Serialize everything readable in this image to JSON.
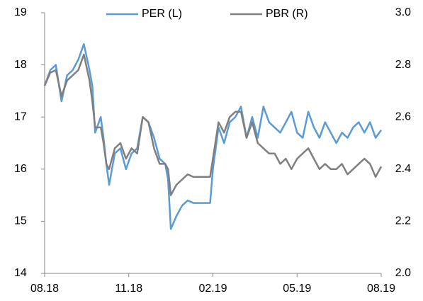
{
  "chart_data": {
    "type": "line",
    "x": [
      0,
      0.2,
      0.4,
      0.6,
      0.8,
      1.0,
      1.2,
      1.4,
      1.6,
      1.7,
      1.8,
      2.0,
      2.1,
      2.2,
      2.3,
      2.5,
      2.7,
      2.9,
      3.1,
      3.3,
      3.5,
      3.7,
      3.9,
      4.1,
      4.3,
      4.4,
      4.5,
      4.7,
      4.9,
      5.1,
      5.3,
      5.5,
      5.7,
      5.9,
      6.0,
      6.2,
      6.4,
      6.6,
      6.8,
      7.0,
      7.2,
      7.4,
      7.6,
      7.8,
      8.0,
      8.2,
      8.4,
      8.6,
      8.8,
      9.0,
      9.2,
      9.4,
      9.6,
      9.8,
      10.0,
      10.2,
      10.4,
      10.6,
      10.8,
      11.0,
      11.2,
      11.4,
      11.6,
      11.8,
      12.0
    ],
    "xlim": [
      0,
      12
    ],
    "xticks": [
      {
        "value": 0,
        "label": "08.18"
      },
      {
        "value": 3,
        "label": "11.18"
      },
      {
        "value": 6,
        "label": "02.19"
      },
      {
        "value": 9,
        "label": "05.19"
      },
      {
        "value": 12,
        "label": "08.19"
      }
    ],
    "ylim": [
      14,
      19
    ],
    "yticks": [
      14,
      15,
      16,
      17,
      18,
      19
    ],
    "y2lim": [
      2.0,
      3.0
    ],
    "y2ticks": [
      {
        "value": 2.0,
        "label": "2.0"
      },
      2.2,
      2.4,
      2.6,
      2.8,
      {
        "value": 3.0,
        "label": "3.0"
      }
    ],
    "legend": "top",
    "series": [
      {
        "name": "PER (L)",
        "color": "#5b9bd5",
        "axis": "y",
        "values": [
          17.6,
          17.9,
          18.0,
          17.3,
          17.8,
          17.9,
          18.1,
          18.4,
          17.9,
          17.6,
          16.7,
          17.0,
          16.6,
          16.1,
          15.7,
          16.3,
          16.4,
          16.0,
          16.3,
          16.4,
          17.0,
          16.9,
          16.6,
          16.2,
          16.1,
          15.8,
          14.85,
          15.1,
          15.3,
          15.4,
          15.35,
          15.35,
          15.35,
          15.35,
          16.0,
          16.8,
          16.5,
          16.9,
          17.0,
          17.2,
          16.6,
          17.0,
          16.6,
          17.2,
          16.9,
          16.8,
          16.7,
          16.9,
          17.1,
          16.7,
          16.6,
          17.1,
          16.8,
          16.6,
          16.9,
          16.7,
          16.5,
          16.7,
          16.6,
          16.8,
          16.9,
          16.7,
          16.9,
          16.6,
          16.75
        ]
      },
      {
        "name": "PBR (R)",
        "color": "#7f7f7f",
        "axis": "y2",
        "values": [
          2.72,
          2.77,
          2.78,
          2.68,
          2.74,
          2.76,
          2.78,
          2.84,
          2.74,
          2.66,
          2.56,
          2.56,
          2.5,
          2.42,
          2.4,
          2.48,
          2.5,
          2.44,
          2.48,
          2.46,
          2.6,
          2.58,
          2.48,
          2.42,
          2.42,
          2.4,
          2.3,
          2.34,
          2.36,
          2.38,
          2.37,
          2.37,
          2.37,
          2.37,
          2.44,
          2.58,
          2.54,
          2.6,
          2.62,
          2.62,
          2.52,
          2.58,
          2.5,
          2.48,
          2.46,
          2.46,
          2.42,
          2.44,
          2.4,
          2.44,
          2.46,
          2.48,
          2.44,
          2.4,
          2.42,
          2.4,
          2.4,
          2.42,
          2.38,
          2.4,
          2.42,
          2.44,
          2.42,
          2.37,
          2.41
        ]
      }
    ]
  }
}
